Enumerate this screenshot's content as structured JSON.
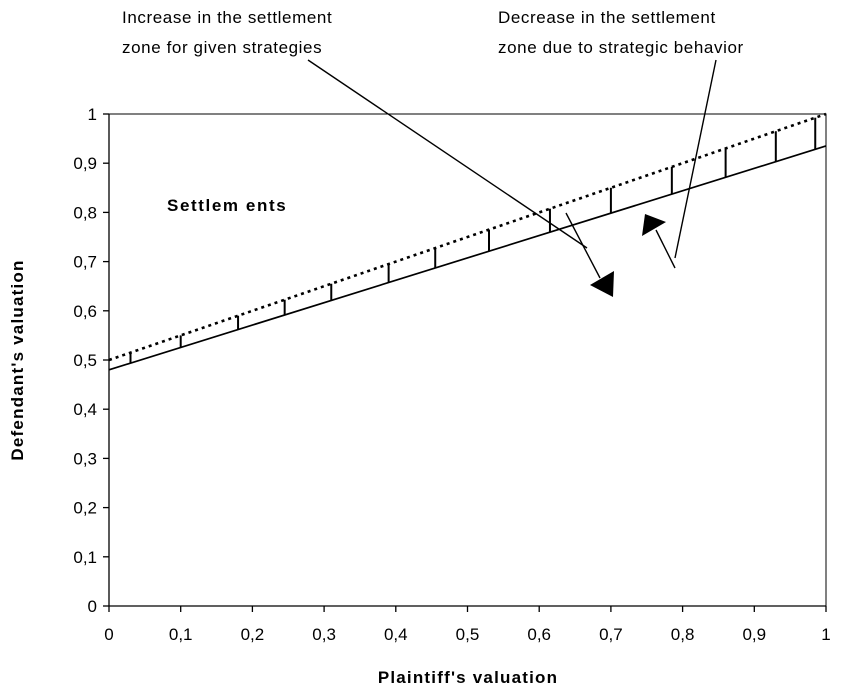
{
  "chart_data": {
    "type": "line",
    "xlabel": "Plaintiff's valuation",
    "ylabel": "Defendant's valuation",
    "xlim": [
      0,
      1
    ],
    "ylim": [
      0,
      1
    ],
    "x_ticks": [
      "0",
      "0,1",
      "0,2",
      "0,3",
      "0,4",
      "0,5",
      "0,6",
      "0,7",
      "0,8",
      "0,9",
      "1"
    ],
    "y_ticks": [
      "0",
      "0,1",
      "0,2",
      "0,3",
      "0,4",
      "0,5",
      "0,6",
      "0,7",
      "0,8",
      "0,9",
      "1"
    ],
    "grid": false,
    "series": [
      {
        "style": "solid",
        "color": "#000000",
        "x": [
          0,
          1
        ],
        "y": [
          0.48,
          0.935
        ]
      },
      {
        "style": "dotted",
        "color": "#000000",
        "x": [
          0,
          1
        ],
        "y": [
          0.5,
          1.0
        ]
      }
    ],
    "hatch_x": [
      0.03,
      0.1,
      0.18,
      0.245,
      0.31,
      0.39,
      0.455,
      0.53,
      0.615,
      0.7,
      0.785,
      0.86,
      0.93,
      0.985
    ],
    "annotations": {
      "region_label": "Settlem ents",
      "increase_text": [
        "Increase in the settlement",
        "zone for given strategies"
      ],
      "decrease_text": [
        "Decrease in the settlement",
        "zone due to strategic behavior"
      ]
    }
  }
}
